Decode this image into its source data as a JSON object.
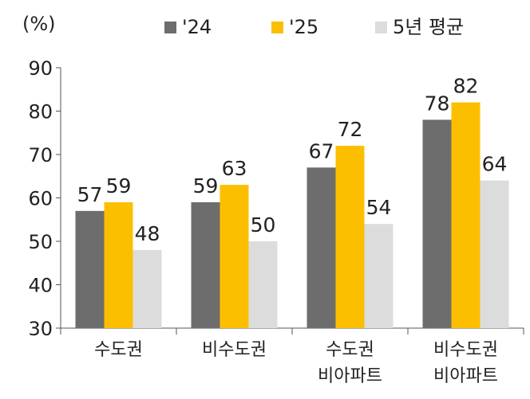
{
  "chart_data": {
    "type": "bar",
    "unit_label": "(%)",
    "categories": [
      [
        "수도권"
      ],
      [
        "비수도권"
      ],
      [
        "수도권",
        "비아파트"
      ],
      [
        "비수도권",
        "비아파트"
      ]
    ],
    "series": [
      {
        "name": "'24",
        "color": "#6d6d6d",
        "values": [
          57,
          59,
          67,
          78
        ],
        "labels": [
          "57",
          "59",
          "67",
          "78"
        ]
      },
      {
        "name": "'25",
        "color": "#fcbf00",
        "values": [
          59,
          63,
          72,
          82
        ],
        "labels": [
          "59",
          "63",
          "72",
          "82"
        ]
      },
      {
        "name": "5년 평균",
        "color": "#dcdcdc",
        "values": [
          48,
          50,
          54,
          64
        ],
        "labels": [
          "48",
          "50",
          "54",
          "64"
        ]
      }
    ],
    "ylim": [
      30,
      90
    ],
    "yticks": [
      "30",
      "40",
      "50",
      "60",
      "70",
      "80",
      "90"
    ],
    "legend_position": "top",
    "grid": false
  }
}
